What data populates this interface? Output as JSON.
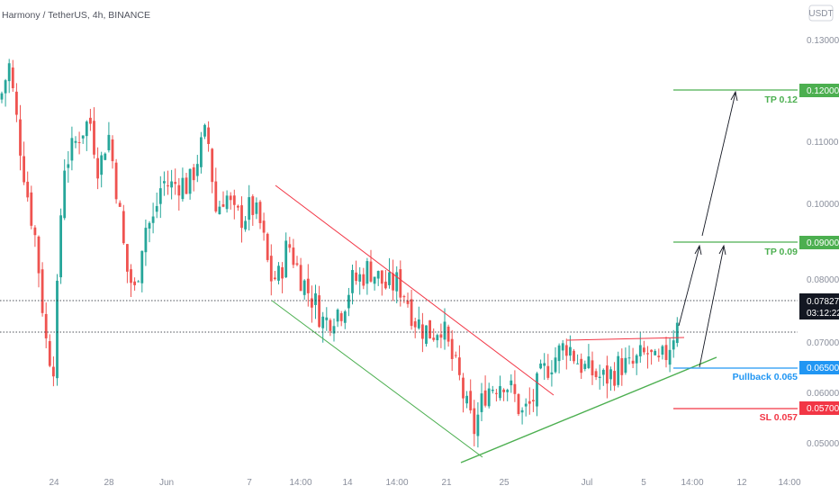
{
  "header": {
    "symbol_title": "Harmony / TetherUS, 4h, BINANCE",
    "currency_badge": "USDT"
  },
  "price_axis": {
    "ticks": [
      "0.13000",
      "0.12000",
      "0.11000",
      "0.10000",
      "0.09000",
      "0.08000",
      "0.07000",
      "0.06000",
      "0.05000"
    ],
    "current_price": "0.07827",
    "countdown": "03:12:22"
  },
  "time_axis": {
    "labels": [
      "24",
      "28",
      "Jun",
      "7",
      "14:00",
      "14",
      "14:00",
      "21",
      "25",
      "Jul",
      "5",
      "14:00",
      "12",
      "14:00"
    ]
  },
  "annotations": {
    "tp2_label": "TP 0.12",
    "tp2_value": "0.12000",
    "tp1_label": "TP 0.09",
    "tp1_value": "0.09000",
    "pullback_label": "Pullback 0.065",
    "pullback_value": "0.06500",
    "sl_label": "SL 0.057",
    "sl_value": "0.05700"
  },
  "colors": {
    "up": "#26a69a",
    "down": "#ef5350",
    "green_line": "#4caf50",
    "red_line": "#f23645",
    "blue": "#2196f3",
    "current_tag": "#131722"
  },
  "chart_data": {
    "type": "candlestick",
    "title": "Harmony / TetherUS, 4h, BINANCE",
    "price_levels": {
      "tp2": 0.12,
      "tp1": 0.09,
      "pullback": 0.065,
      "sl": 0.057,
      "last": 0.07827
    },
    "ylim": [
      0.045,
      0.136
    ],
    "x_tick_labels": [
      "24",
      "28",
      "Jun",
      "7",
      "14:00",
      "14",
      "14:00",
      "21",
      "25",
      "Jul",
      "5",
      "14:00",
      "12",
      "14:00"
    ],
    "approx_close_path": [
      [
        0,
        0.118
      ],
      [
        10,
        0.125
      ],
      [
        20,
        0.112
      ],
      [
        30,
        0.1
      ],
      [
        40,
        0.09
      ],
      [
        52,
        0.069
      ],
      [
        60,
        0.066
      ],
      [
        70,
        0.105
      ],
      [
        80,
        0.108
      ],
      [
        90,
        0.112
      ],
      [
        100,
        0.114
      ],
      [
        110,
        0.104
      ],
      [
        120,
        0.112
      ],
      [
        130,
        0.1
      ],
      [
        140,
        0.085
      ],
      [
        150,
        0.08
      ],
      [
        160,
        0.093
      ],
      [
        170,
        0.094
      ],
      [
        180,
        0.102
      ],
      [
        190,
        0.101
      ],
      [
        200,
        0.102
      ],
      [
        210,
        0.101
      ],
      [
        220,
        0.107
      ],
      [
        230,
        0.112
      ],
      [
        240,
        0.096
      ],
      [
        250,
        0.1
      ],
      [
        260,
        0.095
      ],
      [
        270,
        0.095
      ],
      [
        280,
        0.097
      ],
      [
        290,
        0.093
      ],
      [
        300,
        0.083
      ],
      [
        310,
        0.083
      ],
      [
        320,
        0.09
      ],
      [
        330,
        0.085
      ],
      [
        340,
        0.081
      ],
      [
        350,
        0.078
      ],
      [
        360,
        0.074
      ],
      [
        370,
        0.076
      ],
      [
        380,
        0.077
      ],
      [
        390,
        0.082
      ],
      [
        400,
        0.083
      ],
      [
        410,
        0.085
      ],
      [
        420,
        0.083
      ],
      [
        430,
        0.081
      ],
      [
        440,
        0.082
      ],
      [
        450,
        0.08
      ],
      [
        460,
        0.075
      ],
      [
        470,
        0.073
      ],
      [
        480,
        0.072
      ],
      [
        490,
        0.074
      ],
      [
        500,
        0.068
      ],
      [
        510,
        0.063
      ],
      [
        520,
        0.056
      ],
      [
        527,
        0.053
      ],
      [
        533,
        0.057
      ],
      [
        540,
        0.061
      ],
      [
        550,
        0.062
      ],
      [
        560,
        0.063
      ],
      [
        570,
        0.06
      ],
      [
        580,
        0.056
      ],
      [
        590,
        0.058
      ],
      [
        600,
        0.063
      ],
      [
        610,
        0.066
      ],
      [
        620,
        0.068
      ],
      [
        630,
        0.07
      ],
      [
        640,
        0.067
      ],
      [
        650,
        0.065
      ],
      [
        660,
        0.064
      ],
      [
        670,
        0.063
      ],
      [
        680,
        0.064
      ],
      [
        690,
        0.066
      ],
      [
        700,
        0.065
      ],
      [
        710,
        0.067
      ],
      [
        720,
        0.068
      ],
      [
        730,
        0.065
      ],
      [
        740,
        0.068
      ],
      [
        748,
        0.072
      ],
      [
        755,
        0.078
      ]
    ]
  }
}
